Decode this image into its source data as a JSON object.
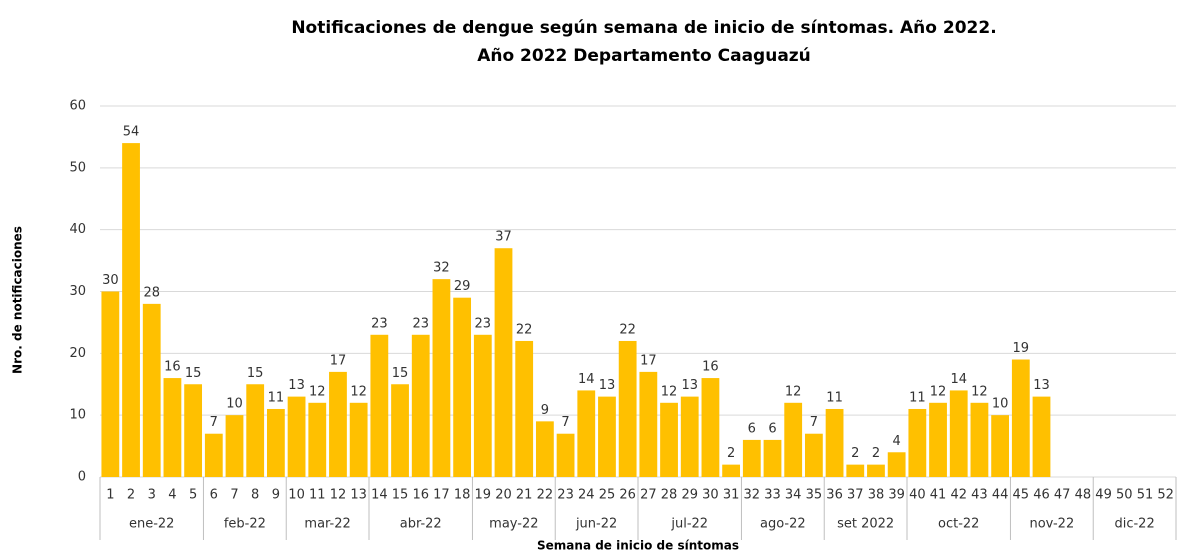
{
  "chart_data": {
    "type": "bar",
    "title": "Notificaciones de dengue según semana de inicio de síntomas. Año 2022.",
    "subtitle": "Año 2022 Departamento Caaguazú",
    "x_label": "Semana de inicio de síntomas",
    "y_label": "Nro. de notificaciones",
    "color": "#FFC000",
    "grid": true,
    "ylim": [
      0,
      60
    ],
    "yticks": [
      0,
      10,
      20,
      30,
      40,
      50,
      60
    ],
    "groups": [
      {
        "label": "ene-22",
        "categories": [
          "1",
          "2",
          "3",
          "4",
          "5"
        ]
      },
      {
        "label": "feb-22",
        "categories": [
          "6",
          "7",
          "8",
          "9"
        ]
      },
      {
        "label": "mar-22",
        "categories": [
          "10",
          "11",
          "12",
          "13"
        ]
      },
      {
        "label": "abr-22",
        "categories": [
          "14",
          "15",
          "16",
          "17",
          "18"
        ]
      },
      {
        "label": "may-22",
        "categories": [
          "19",
          "20",
          "21",
          "22"
        ]
      },
      {
        "label": "jun-22",
        "categories": [
          "23",
          "24",
          "25",
          "26"
        ]
      },
      {
        "label": "jul-22",
        "categories": [
          "27",
          "28",
          "29",
          "30",
          "31"
        ]
      },
      {
        "label": "ago-22",
        "categories": [
          "32",
          "33",
          "34",
          "35"
        ]
      },
      {
        "label": "set 2022",
        "categories": [
          "36",
          "37",
          "38",
          "39"
        ]
      },
      {
        "label": "oct-22",
        "categories": [
          "40",
          "41",
          "42",
          "43",
          "44"
        ]
      },
      {
        "label": "nov-22",
        "categories": [
          "45",
          "46",
          "47",
          "48"
        ]
      },
      {
        "label": "dic-22",
        "categories": [
          "49",
          "50",
          "51",
          "52"
        ]
      }
    ],
    "values": [
      30,
      54,
      28,
      16,
      15,
      7,
      10,
      15,
      11,
      13,
      12,
      17,
      12,
      23,
      15,
      23,
      32,
      29,
      23,
      37,
      22,
      9,
      7,
      14,
      13,
      22,
      17,
      12,
      13,
      16,
      2,
      6,
      6,
      12,
      7,
      11,
      2,
      2,
      4,
      11,
      12,
      14,
      12,
      10,
      19,
      13,
      null,
      null,
      null,
      null,
      null,
      null
    ]
  }
}
